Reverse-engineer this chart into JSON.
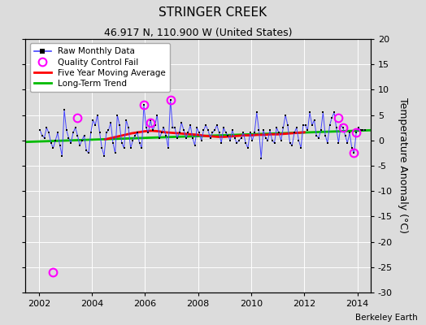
{
  "title": "STRINGER CREEK",
  "subtitle": "46.917 N, 110.900 W (United States)",
  "ylabel": "Temperature Anomaly (°C)",
  "attribution": "Berkeley Earth",
  "xlim": [
    2001.5,
    2014.5
  ],
  "ylim": [
    -30,
    20
  ],
  "yticks": [
    -30,
    -25,
    -20,
    -15,
    -10,
    -5,
    0,
    5,
    10,
    15,
    20
  ],
  "xticks": [
    2002,
    2004,
    2006,
    2008,
    2010,
    2012,
    2014
  ],
  "background_color": "#dcdcdc",
  "plot_bg_color": "#dcdcdc",
  "grid_color": "#ffffff",
  "raw_line_color": "#4444ff",
  "raw_marker_color": "#000000",
  "ma_color": "#ff0000",
  "trend_color": "#00bb00",
  "qc_color": "#ff00ff",
  "raw_data_x": [
    2002.042,
    2002.125,
    2002.208,
    2002.292,
    2002.375,
    2002.458,
    2002.542,
    2002.625,
    2002.708,
    2002.792,
    2002.875,
    2002.958,
    2003.042,
    2003.125,
    2003.208,
    2003.292,
    2003.375,
    2003.458,
    2003.542,
    2003.625,
    2003.708,
    2003.792,
    2003.875,
    2003.958,
    2004.042,
    2004.125,
    2004.208,
    2004.292,
    2004.375,
    2004.458,
    2004.542,
    2004.625,
    2004.708,
    2004.792,
    2004.875,
    2004.958,
    2005.042,
    2005.125,
    2005.208,
    2005.292,
    2005.375,
    2005.458,
    2005.542,
    2005.625,
    2005.708,
    2005.792,
    2005.875,
    2005.958,
    2006.042,
    2006.125,
    2006.208,
    2006.292,
    2006.375,
    2006.458,
    2006.542,
    2006.625,
    2006.708,
    2006.792,
    2006.875,
    2006.958,
    2007.042,
    2007.125,
    2007.208,
    2007.292,
    2007.375,
    2007.458,
    2007.542,
    2007.625,
    2007.708,
    2007.792,
    2007.875,
    2007.958,
    2008.042,
    2008.125,
    2008.208,
    2008.292,
    2008.375,
    2008.458,
    2008.542,
    2008.625,
    2008.708,
    2008.792,
    2008.875,
    2008.958,
    2009.042,
    2009.125,
    2009.208,
    2009.292,
    2009.375,
    2009.458,
    2009.542,
    2009.625,
    2009.708,
    2009.792,
    2009.875,
    2009.958,
    2010.042,
    2010.125,
    2010.208,
    2010.292,
    2010.375,
    2010.458,
    2010.542,
    2010.625,
    2010.708,
    2010.792,
    2010.875,
    2010.958,
    2011.042,
    2011.125,
    2011.208,
    2011.292,
    2011.375,
    2011.458,
    2011.542,
    2011.625,
    2011.708,
    2011.792,
    2011.875,
    2011.958,
    2012.042,
    2012.125,
    2012.208,
    2012.292,
    2012.375,
    2012.458,
    2012.542,
    2012.625,
    2012.708,
    2012.792,
    2012.875,
    2012.958,
    2013.042,
    2013.125,
    2013.208,
    2013.292,
    2013.375,
    2013.458,
    2013.542,
    2013.625,
    2013.708,
    2013.792,
    2013.875,
    2013.958,
    2014.042,
    2014.125,
    2014.208,
    2014.292
  ],
  "raw_data_y": [
    2.0,
    1.0,
    0.5,
    2.5,
    1.5,
    -0.5,
    -1.5,
    0.0,
    1.5,
    -1.0,
    -3.0,
    6.0,
    2.0,
    0.5,
    -0.5,
    1.5,
    2.5,
    1.0,
    -1.0,
    0.0,
    1.0,
    -2.0,
    -2.5,
    1.5,
    4.0,
    3.0,
    5.0,
    1.5,
    -1.5,
    -3.0,
    1.5,
    2.0,
    3.5,
    -0.5,
    -2.5,
    5.0,
    3.0,
    -0.5,
    -1.5,
    4.0,
    2.5,
    -1.5,
    0.0,
    1.0,
    1.5,
    -0.5,
    -1.5,
    7.0,
    2.5,
    1.5,
    4.0,
    2.0,
    3.0,
    5.0,
    0.5,
    1.5,
    2.5,
    1.0,
    -1.5,
    8.0,
    2.5,
    2.5,
    0.5,
    1.5,
    3.5,
    2.0,
    0.5,
    1.5,
    3.0,
    0.5,
    -1.0,
    2.5,
    1.5,
    0.0,
    2.0,
    3.0,
    2.0,
    0.5,
    1.5,
    2.0,
    3.0,
    1.5,
    -0.5,
    2.5,
    1.5,
    1.0,
    0.0,
    2.0,
    0.5,
    -0.5,
    0.0,
    0.5,
    1.5,
    -0.5,
    -1.5,
    1.5,
    0.0,
    1.5,
    5.5,
    2.0,
    -3.5,
    2.0,
    0.5,
    0.0,
    2.0,
    0.0,
    -0.5,
    2.5,
    1.5,
    0.0,
    2.5,
    5.0,
    3.0,
    -0.5,
    -1.0,
    1.5,
    2.5,
    0.0,
    -1.5,
    3.0,
    3.0,
    2.0,
    5.5,
    3.0,
    4.0,
    1.0,
    0.5,
    2.0,
    5.5,
    1.0,
    -0.5,
    3.0,
    4.5,
    5.5,
    2.5,
    -0.5,
    3.0,
    2.5,
    1.0,
    -0.5,
    1.5,
    -1.5,
    -2.5,
    1.5,
    2.5,
    2.0,
    2.0,
    2.0
  ],
  "qc_fail_x": [
    2002.542,
    2003.458,
    2005.958,
    2006.208,
    2006.958,
    2013.292,
    2013.458,
    2013.875,
    2013.958
  ],
  "qc_fail_y": [
    -26.0,
    4.5,
    7.0,
    3.5,
    8.0,
    4.5,
    2.5,
    -2.5,
    1.5
  ],
  "ma_x": [
    2004.5,
    2004.75,
    2005.0,
    2005.25,
    2005.5,
    2005.75,
    2006.0,
    2006.25,
    2006.5,
    2006.75,
    2007.0,
    2007.25,
    2007.5,
    2007.75,
    2008.0,
    2008.25,
    2008.5,
    2008.75,
    2009.0,
    2009.25,
    2009.5,
    2009.75,
    2010.0,
    2010.25,
    2010.5,
    2010.75,
    2011.0,
    2011.25,
    2011.5,
    2011.75,
    2012.0
  ],
  "ma_y": [
    0.2,
    0.5,
    0.8,
    1.1,
    1.4,
    1.6,
    1.8,
    1.9,
    1.8,
    1.6,
    1.5,
    1.4,
    1.3,
    1.2,
    1.1,
    0.9,
    0.8,
    0.7,
    0.7,
    0.8,
    0.9,
    1.0,
    1.0,
    1.1,
    1.1,
    1.2,
    1.2,
    1.3,
    1.4,
    1.5,
    1.6
  ],
  "trend_x": [
    2001.5,
    2014.5
  ],
  "trend_y": [
    -0.3,
    2.0
  ],
  "legend_loc": "upper left",
  "title_fontsize": 11,
  "subtitle_fontsize": 9,
  "tick_labelsize": 8,
  "ylabel_fontsize": 9
}
